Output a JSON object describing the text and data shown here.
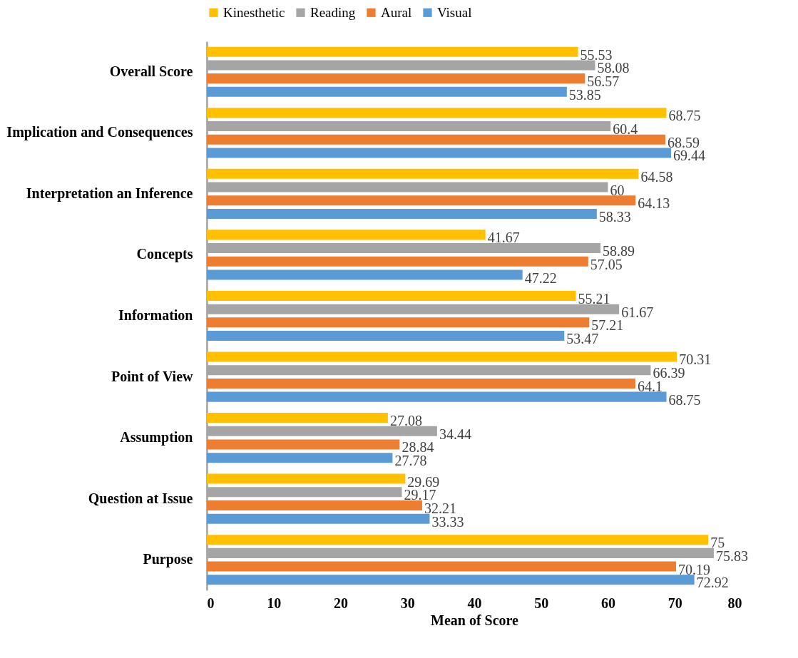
{
  "chart_data": {
    "type": "bar",
    "orientation": "horizontal",
    "xlabel": "Mean of Score",
    "categories": [
      "Overall Score",
      "Implication and Consequences",
      "Interpretation an Inference",
      "Concepts",
      "Information",
      "Point of View",
      "Assumption",
      "Question at Issue",
      "Purpose"
    ],
    "series": [
      {
        "name": "Kinesthetic",
        "color": "#ffc000",
        "values": [
          55.53,
          68.75,
          64.58,
          41.67,
          55.21,
          70.31,
          27.08,
          29.69,
          75
        ]
      },
      {
        "name": "Reading",
        "color": "#a5a5a5",
        "values": [
          58.08,
          60.4,
          60,
          58.89,
          61.67,
          66.39,
          34.44,
          29.17,
          75.83
        ]
      },
      {
        "name": "Aural",
        "color": "#ed7d31",
        "values": [
          56.57,
          68.59,
          64.13,
          57.05,
          57.21,
          64.1,
          28.84,
          32.21,
          70.19
        ]
      },
      {
        "name": "Visual",
        "color": "#5b9bd5",
        "values": [
          53.85,
          69.44,
          58.33,
          47.22,
          53.47,
          68.75,
          27.78,
          33.33,
          72.92
        ]
      }
    ],
    "xlim": [
      0,
      80
    ],
    "xticks": [
      0,
      10,
      20,
      30,
      40,
      50,
      60,
      70,
      80
    ],
    "grid": false,
    "legend": "top",
    "data_labels": true
  }
}
